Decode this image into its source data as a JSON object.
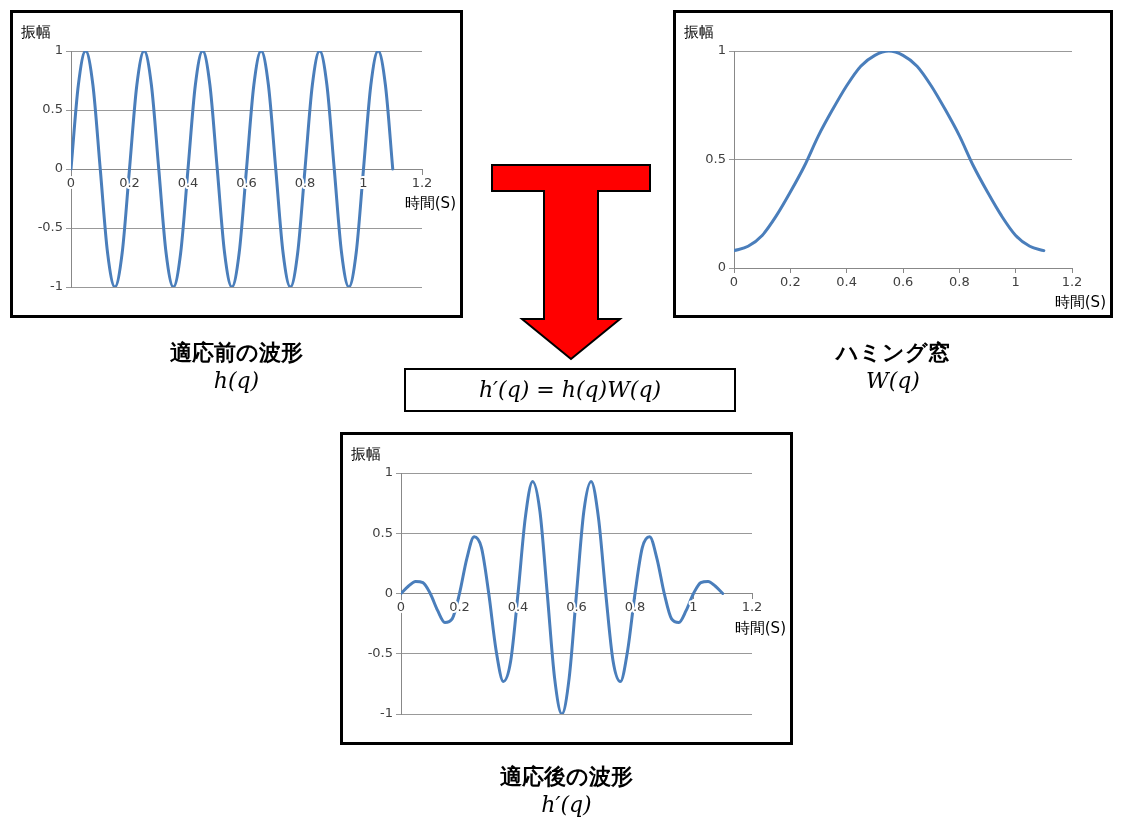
{
  "chart_data": [
    {
      "type": "line",
      "title": "適応前の波形",
      "subtitle": "h(q)",
      "xlabel": "時間(S)",
      "ylabel": "振幅",
      "series": [
        {
          "color": "#4a7ebb",
          "x": [
            0,
            0.025,
            0.05,
            0.075,
            0.1,
            0.125,
            0.15,
            0.175,
            0.2,
            0.225,
            0.25,
            0.275,
            0.3,
            0.325,
            0.35,
            0.375,
            0.4,
            0.425,
            0.45,
            0.475,
            0.5,
            0.525,
            0.55,
            0.575,
            0.6,
            0.625,
            0.65,
            0.675,
            0.7,
            0.725,
            0.75,
            0.775,
            0.8,
            0.825,
            0.85,
            0.875,
            0.9,
            0.925,
            0.95,
            0.975,
            1,
            1.025,
            1.05,
            1.075,
            1.1
          ],
          "values": [
            0,
            0.71,
            1,
            0.71,
            0,
            -0.71,
            -1,
            -0.71,
            0,
            0.71,
            1,
            0.71,
            0,
            -0.71,
            -1,
            -0.71,
            0,
            0.71,
            1,
            0.71,
            0,
            -0.71,
            -1,
            -0.71,
            0,
            0.71,
            1,
            0.71,
            0,
            -0.71,
            -1,
            -0.71,
            0,
            0.71,
            1,
            0.71,
            0,
            -0.71,
            -1,
            -0.71,
            0,
            0.71,
            1,
            0.71,
            0
          ]
        }
      ],
      "xlim": [
        0,
        1.2
      ],
      "xticks": [
        0,
        0.2,
        0.4,
        0.6,
        0.8,
        1,
        1.2
      ],
      "ylim": [
        -1,
        1
      ],
      "yticks": [
        -1,
        -0.5,
        0,
        0.5,
        1
      ],
      "grid": "y",
      "marker": "none",
      "line_style": "solid"
    },
    {
      "type": "line",
      "title": "ハミング窓",
      "subtitle": "W(q)",
      "xlabel": "時間(S)",
      "ylabel": "振幅",
      "series": [
        {
          "color": "#4a7ebb",
          "x": [
            0,
            0.05,
            0.1,
            0.15,
            0.2,
            0.25,
            0.3,
            0.35,
            0.4,
            0.45,
            0.5,
            0.55,
            0.6,
            0.65,
            0.7,
            0.75,
            0.8,
            0.85,
            0.9,
            0.95,
            1,
            1.05,
            1.1
          ],
          "values": [
            0.08,
            0.1,
            0.15,
            0.24,
            0.35,
            0.47,
            0.61,
            0.73,
            0.84,
            0.93,
            0.98,
            1,
            0.98,
            0.93,
            0.84,
            0.73,
            0.61,
            0.47,
            0.35,
            0.24,
            0.15,
            0.1,
            0.08
          ]
        }
      ],
      "xlim": [
        0,
        1.2
      ],
      "xticks": [
        0,
        0.2,
        0.4,
        0.6,
        0.8,
        1,
        1.2
      ],
      "ylim": [
        0,
        1
      ],
      "yticks": [
        0,
        0.5,
        1
      ],
      "grid": "y",
      "marker": "none",
      "line_style": "solid"
    },
    {
      "type": "line",
      "title": "適応後の波形",
      "subtitle": "h′(q)",
      "xlabel": "時間(S)",
      "ylabel": "振幅",
      "annotations": [
        "h′(q) = h(q)W(q)"
      ],
      "series": [
        {
          "color": "#4a7ebb",
          "x": [
            0,
            0.025,
            0.05,
            0.075,
            0.1,
            0.125,
            0.15,
            0.175,
            0.2,
            0.225,
            0.25,
            0.275,
            0.3,
            0.325,
            0.35,
            0.375,
            0.4,
            0.425,
            0.45,
            0.475,
            0.5,
            0.525,
            0.55,
            0.575,
            0.6,
            0.625,
            0.65,
            0.675,
            0.7,
            0.725,
            0.75,
            0.775,
            0.8,
            0.825,
            0.85,
            0.875,
            0.9,
            0.925,
            0.95,
            0.975,
            1,
            1.025,
            1.05,
            1.075,
            1.1
          ],
          "values": [
            0,
            0.06,
            0.1,
            0.09,
            0,
            -0.14,
            -0.24,
            -0.21,
            0,
            0.29,
            0.47,
            0.38,
            0,
            -0.47,
            -0.73,
            -0.56,
            0,
            0.63,
            0.93,
            0.68,
            0,
            -0.7,
            -1,
            -0.7,
            0,
            0.68,
            0.93,
            0.63,
            0,
            -0.56,
            -0.73,
            -0.47,
            0,
            0.38,
            0.47,
            0.29,
            0,
            -0.21,
            -0.24,
            -0.14,
            0,
            0.09,
            0.1,
            0.06,
            0
          ]
        }
      ],
      "xlim": [
        0,
        1.2
      ],
      "xticks": [
        0,
        0.2,
        0.4,
        0.6,
        0.8,
        1,
        1.2
      ],
      "ylim": [
        -1,
        1
      ],
      "yticks": [
        -1,
        -0.5,
        0,
        0.5,
        1
      ],
      "grid": "y",
      "marker": "none",
      "line_style": "solid"
    }
  ]
}
